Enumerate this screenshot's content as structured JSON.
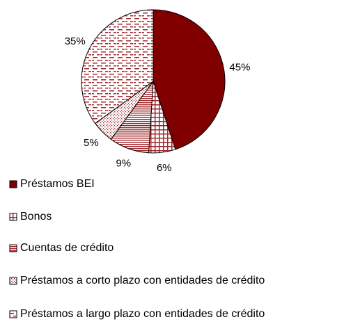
{
  "chart_data": {
    "type": "pie",
    "categories": [
      "Préstamos BEI",
      "Bonos",
      "Cuentas de crédito",
      "Préstamos a corto plazo con entidades de crédito",
      "Préstamos a largo plazo con entidades de crédito"
    ],
    "values": [
      45,
      6,
      9,
      5,
      35
    ],
    "value_labels": [
      "45%",
      "6%",
      "9%",
      "5%",
      "35%"
    ],
    "colors": [
      "#800000",
      "#a0282c",
      "#a0282c",
      "#a0282c",
      "#a0282c"
    ],
    "patterns": [
      "solid",
      "grid",
      "horizontal",
      "dots",
      "dashes"
    ]
  }
}
